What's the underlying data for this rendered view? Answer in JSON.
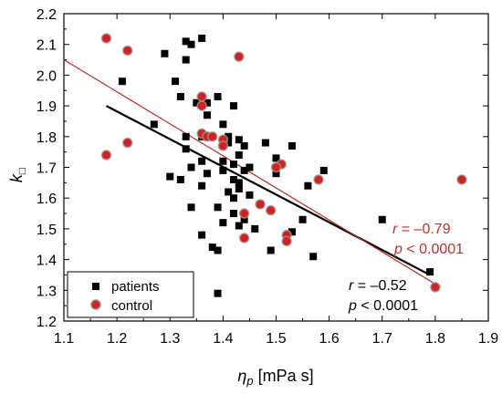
{
  "chart_data": {
    "type": "scatter",
    "xlabel": "η",
    "xlabel_sub": "p",
    "xlabel_unit": "[mPa s]",
    "ylabel": "k",
    "ylabel_sub": "□",
    "xlim": [
      1.1,
      1.9
    ],
    "ylim": [
      1.2,
      2.2
    ],
    "xticks": [
      "1.1",
      "1.2",
      "1.3",
      "1.4",
      "1.5",
      "1.6",
      "1.7",
      "1.8",
      "1.9"
    ],
    "yticks": [
      "1.2",
      "1.3",
      "1.4",
      "1.5",
      "1.6",
      "1.7",
      "1.8",
      "1.9",
      "2.0",
      "2.1",
      "2.2"
    ],
    "grid": false,
    "legend_position": "bottom-left",
    "colors": {
      "patients": "#000000",
      "control": "#d42020",
      "control_fit": "#b5332a",
      "patients_fit": "#000000"
    },
    "series": [
      {
        "name": "patients",
        "marker": "square",
        "points": [
          [
            1.33,
            2.11
          ],
          [
            1.36,
            2.12
          ],
          [
            1.34,
            2.1
          ],
          [
            1.29,
            2.07
          ],
          [
            1.33,
            2.05
          ],
          [
            1.21,
            1.98
          ],
          [
            1.31,
            1.98
          ],
          [
            1.32,
            1.93
          ],
          [
            1.39,
            1.93
          ],
          [
            1.35,
            1.91
          ],
          [
            1.37,
            1.91
          ],
          [
            1.42,
            1.9
          ],
          [
            1.37,
            1.87
          ],
          [
            1.4,
            1.84
          ],
          [
            1.27,
            1.84
          ],
          [
            1.36,
            1.8
          ],
          [
            1.33,
            1.8
          ],
          [
            1.41,
            1.8
          ],
          [
            1.41,
            1.78
          ],
          [
            1.43,
            1.79
          ],
          [
            1.44,
            1.77
          ],
          [
            1.53,
            1.77
          ],
          [
            1.33,
            1.76
          ],
          [
            1.48,
            1.78
          ],
          [
            1.5,
            1.73
          ],
          [
            1.43,
            1.74
          ],
          [
            1.45,
            1.7
          ],
          [
            1.34,
            1.7
          ],
          [
            1.36,
            1.72
          ],
          [
            1.4,
            1.72
          ],
          [
            1.42,
            1.71
          ],
          [
            1.59,
            1.69
          ],
          [
            1.37,
            1.68
          ],
          [
            1.4,
            1.69
          ],
          [
            1.44,
            1.69
          ],
          [
            1.5,
            1.68
          ],
          [
            1.42,
            1.66
          ],
          [
            1.43,
            1.65
          ],
          [
            1.3,
            1.67
          ],
          [
            1.32,
            1.66
          ],
          [
            1.36,
            1.64
          ],
          [
            1.43,
            1.63
          ],
          [
            1.56,
            1.64
          ],
          [
            1.41,
            1.62
          ],
          [
            1.42,
            1.6
          ],
          [
            1.45,
            1.61
          ],
          [
            1.34,
            1.57
          ],
          [
            1.39,
            1.57
          ],
          [
            1.47,
            1.58
          ],
          [
            1.42,
            1.55
          ],
          [
            1.44,
            1.53
          ],
          [
            1.4,
            1.52
          ],
          [
            1.43,
            1.51
          ],
          [
            1.55,
            1.53
          ],
          [
            1.46,
            1.5
          ],
          [
            1.53,
            1.49
          ],
          [
            1.36,
            1.48
          ],
          [
            1.38,
            1.44
          ],
          [
            1.39,
            1.43
          ],
          [
            1.49,
            1.43
          ],
          [
            1.57,
            1.41
          ],
          [
            1.7,
            1.53
          ],
          [
            1.79,
            1.36
          ],
          [
            1.39,
            1.29
          ]
        ]
      },
      {
        "name": "control",
        "marker": "circle",
        "points": [
          [
            1.18,
            2.12
          ],
          [
            1.22,
            2.08
          ],
          [
            1.43,
            2.06
          ],
          [
            1.36,
            1.93
          ],
          [
            1.36,
            1.9
          ],
          [
            1.36,
            1.81
          ],
          [
            1.37,
            1.8
          ],
          [
            1.38,
            1.8
          ],
          [
            1.4,
            1.79
          ],
          [
            1.22,
            1.78
          ],
          [
            1.4,
            1.77
          ],
          [
            1.18,
            1.74
          ],
          [
            1.51,
            1.71
          ],
          [
            1.5,
            1.7
          ],
          [
            1.58,
            1.66
          ],
          [
            1.85,
            1.66
          ],
          [
            1.47,
            1.58
          ],
          [
            1.49,
            1.56
          ],
          [
            1.44,
            1.55
          ],
          [
            1.52,
            1.48
          ],
          [
            1.52,
            1.46
          ],
          [
            1.44,
            1.47
          ],
          [
            1.8,
            1.31
          ]
        ]
      }
    ],
    "fits": [
      {
        "series": "patients",
        "x": [
          1.18,
          1.79
        ],
        "y": [
          1.9,
          1.35
        ]
      },
      {
        "series": "control",
        "x": [
          1.1,
          1.81
        ],
        "y": [
          2.05,
          1.31
        ]
      }
    ],
    "annotations": {
      "control": {
        "r_label": "r",
        "r_value": " = –0.79",
        "p_label": "p",
        "p_value": " < 0.0001"
      },
      "patients": {
        "r_label": "r",
        "r_value": " = –0.52",
        "p_label": "p",
        "p_value": " < 0.0001"
      }
    },
    "legend": [
      {
        "label": "patients",
        "marker": "square"
      },
      {
        "label": "control",
        "marker": "circle"
      }
    ]
  }
}
